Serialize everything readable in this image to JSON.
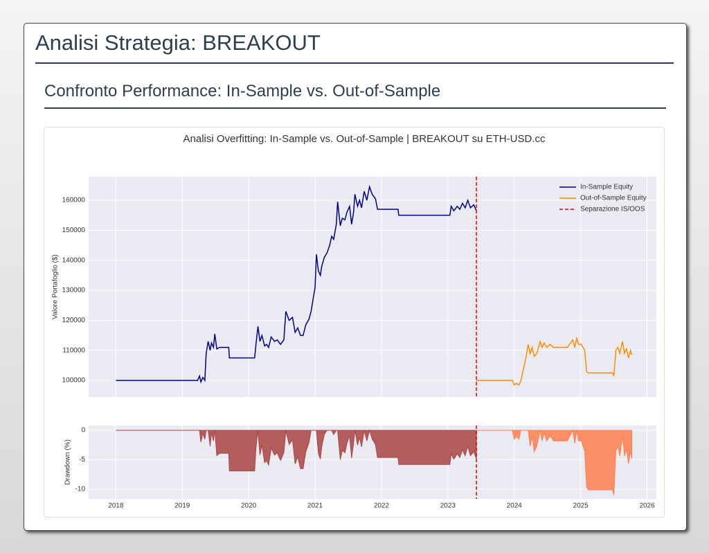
{
  "header": {
    "title": "Analisi Strategia: BREAKOUT",
    "subtitle": "Confronto Performance: In-Sample vs. Out-of-Sample"
  },
  "chart_data": [
    {
      "type": "line",
      "title": "Analisi Overfitting: In-Sample vs. Out-of-Sample | BREAKOUT su ETH-USD.cc",
      "ylabel": "Valore Portafoglio ($)",
      "xlim": [
        2017.59,
        2026.14
      ],
      "ylim": [
        94460,
        167850
      ],
      "yticks": [
        100000,
        110000,
        120000,
        130000,
        140000,
        150000,
        160000
      ],
      "grid": true,
      "legend": "upper right",
      "series": [
        {
          "name": "In-Sample Equity",
          "color": "#00008b",
          "x": [
            2018.0,
            2019.23,
            2019.26,
            2019.28,
            2019.31,
            2019.34,
            2019.36,
            2019.39,
            2019.42,
            2019.44,
            2019.47,
            2019.49,
            2019.52,
            2019.56,
            2019.7,
            2019.71,
            2020.09,
            2020.11,
            2020.14,
            2020.17,
            2020.2,
            2020.24,
            2020.27,
            2020.3,
            2020.34,
            2020.39,
            2020.43,
            2020.48,
            2020.53,
            2020.56,
            2020.61,
            2020.66,
            2020.7,
            2020.74,
            2020.78,
            2020.82,
            2020.86,
            2020.91,
            2020.94,
            2020.97,
            2021.0,
            2021.02,
            2021.05,
            2021.08,
            2021.1,
            2021.14,
            2021.18,
            2021.22,
            2021.25,
            2021.28,
            2021.32,
            2021.34,
            2021.38,
            2021.41,
            2021.45,
            2021.48,
            2021.52,
            2021.55,
            2021.58,
            2021.6,
            2021.64,
            2021.67,
            2021.7,
            2021.74,
            2021.78,
            2021.82,
            2021.86,
            2021.91,
            2021.94,
            2022.25,
            2022.26,
            2023.03,
            2023.05,
            2023.09,
            2023.14,
            2023.18,
            2023.22,
            2023.26,
            2023.3,
            2023.34,
            2023.39,
            2023.43
          ],
          "values": [
            100000,
            100000,
            101500,
            99500,
            101000,
            100000,
            109000,
            113000,
            110000,
            112500,
            111000,
            115500,
            110500,
            111000,
            111000,
            107500,
            107500,
            112000,
            118000,
            113000,
            115000,
            111500,
            112000,
            111000,
            114500,
            113000,
            113500,
            112000,
            113500,
            123000,
            120000,
            121000,
            116000,
            117500,
            115000,
            115000,
            118500,
            120500,
            123000,
            127000,
            131000,
            142000,
            136500,
            135000,
            138000,
            141000,
            142500,
            145000,
            148000,
            147000,
            152000,
            159500,
            151500,
            154000,
            153500,
            156000,
            158000,
            152000,
            156000,
            162000,
            158000,
            160000,
            157500,
            163000,
            160000,
            164500,
            162000,
            160500,
            157000,
            157000,
            155000,
            155000,
            158000,
            156500,
            158000,
            157000,
            159000,
            157500,
            160000,
            157500,
            158500,
            156500
          ]
        },
        {
          "name": "Out-of-Sample Equity",
          "color": "#ff8c00",
          "x": [
            2023.43,
            2023.97,
            2024.0,
            2024.03,
            2024.07,
            2024.1,
            2024.14,
            2024.18,
            2024.21,
            2024.24,
            2024.27,
            2024.3,
            2024.34,
            2024.39,
            2024.42,
            2024.45,
            2024.49,
            2024.54,
            2024.59,
            2024.8,
            2024.88,
            2024.91,
            2024.94,
            2024.97,
            2025.01,
            2025.06,
            2025.09,
            2025.11,
            2025.48,
            2025.5,
            2025.53,
            2025.56,
            2025.59,
            2025.63,
            2025.66,
            2025.69,
            2025.72,
            2025.75,
            2025.77
          ],
          "values": [
            100000,
            100000,
            98500,
            99000,
            98500,
            100000,
            104000,
            108000,
            112000,
            109000,
            111000,
            108000,
            109000,
            113000,
            111000,
            112500,
            111000,
            112000,
            111000,
            111000,
            113500,
            111000,
            114000,
            112000,
            112000,
            110000,
            103000,
            102500,
            102500,
            101500,
            110000,
            111000,
            109000,
            113000,
            109000,
            110500,
            107500,
            110000,
            108500
          ]
        }
      ],
      "vline": {
        "x": 2023.43,
        "color": "#e00000",
        "name": "Separazione IS/OOS"
      }
    },
    {
      "type": "area",
      "ylabel": "Drawdown (%)",
      "xlim": [
        2017.59,
        2026.14
      ],
      "ylim": [
        -11.65,
        0.82
      ],
      "xticks": [
        2018,
        2019,
        2020,
        2021,
        2022,
        2023,
        2024,
        2025,
        2026
      ],
      "yticks": [
        0,
        -5,
        -10
      ],
      "grid": true,
      "series": [
        {
          "color": "#a94442",
          "x": [
            2018.0,
            2019.23,
            2019.26,
            2019.28,
            2019.31,
            2019.34,
            2019.36,
            2019.39,
            2019.42,
            2019.44,
            2019.47,
            2019.49,
            2019.52,
            2019.56,
            2019.7,
            2019.71,
            2020.09,
            2020.11,
            2020.14,
            2020.17,
            2020.2,
            2020.24,
            2020.27,
            2020.3,
            2020.34,
            2020.39,
            2020.43,
            2020.48,
            2020.53,
            2020.56,
            2020.61,
            2020.66,
            2020.7,
            2020.74,
            2020.78,
            2020.82,
            2020.86,
            2020.91,
            2020.94,
            2020.97,
            2021.0,
            2021.02,
            2021.05,
            2021.08,
            2021.1,
            2021.14,
            2021.18,
            2021.22,
            2021.25,
            2021.28,
            2021.32,
            2021.34,
            2021.38,
            2021.41,
            2021.45,
            2021.48,
            2021.52,
            2021.55,
            2021.58,
            2021.6,
            2021.64,
            2021.67,
            2021.7,
            2021.74,
            2021.78,
            2021.82,
            2021.86,
            2021.91,
            2021.94,
            2022.25,
            2022.26,
            2023.03,
            2023.05,
            2023.09,
            2023.14,
            2023.18,
            2023.22,
            2023.26,
            2023.3,
            2023.34,
            2023.39,
            2023.43
          ],
          "values": [
            0,
            0,
            0,
            -2.0,
            -0.5,
            -1.5,
            0,
            0,
            -2.7,
            -0.4,
            -1.8,
            0,
            -4.3,
            -3.9,
            -3.9,
            -6.9,
            -6.9,
            -3.0,
            0,
            -4.2,
            -2.5,
            -5.5,
            -5.1,
            -5.9,
            -3.0,
            -4.2,
            -3.8,
            -5.1,
            -3.8,
            0,
            -2.4,
            -1.6,
            -5.7,
            -4.5,
            -6.5,
            -6.5,
            -3.7,
            -2.0,
            0,
            0,
            0,
            0,
            -3.9,
            -4.9,
            -2.8,
            -0.7,
            0,
            0,
            0,
            -0.7,
            0,
            0,
            -5.0,
            -3.4,
            -3.8,
            -2.2,
            -0.9,
            -4.7,
            -2.2,
            0,
            -2.5,
            -1.2,
            -2.8,
            0,
            -1.8,
            0,
            -1.5,
            -2.4,
            -4.6,
            -4.6,
            -5.8,
            -5.8,
            -4.0,
            -4.9,
            -4.0,
            -4.6,
            -3.3,
            -4.3,
            -2.7,
            -4.3,
            -3.6,
            -4.9
          ]
        },
        {
          "color": "#ff7f50",
          "x": [
            2023.43,
            2023.97,
            2024.0,
            2024.03,
            2024.07,
            2024.1,
            2024.14,
            2024.18,
            2024.21,
            2024.24,
            2024.27,
            2024.3,
            2024.34,
            2024.39,
            2024.42,
            2024.45,
            2024.49,
            2024.54,
            2024.59,
            2024.8,
            2024.88,
            2024.91,
            2024.94,
            2024.97,
            2025.01,
            2025.06,
            2025.09,
            2025.11,
            2025.48,
            2025.5,
            2025.53,
            2025.56,
            2025.59,
            2025.63,
            2025.66,
            2025.69,
            2025.72,
            2025.75,
            2025.77
          ],
          "values": [
            0,
            0,
            -1.5,
            -1.0,
            -1.5,
            0,
            0,
            0,
            0,
            -2.7,
            -0.9,
            -3.6,
            -2.7,
            0,
            -1.8,
            -0.4,
            -1.8,
            -0.9,
            -1.8,
            -1.8,
            0,
            -2.2,
            0,
            -1.8,
            -1.8,
            -3.5,
            -9.6,
            -10.1,
            -10.1,
            -11.0,
            -3.5,
            -2.6,
            -4.4,
            -0.9,
            -4.4,
            -3.1,
            -5.7,
            -3.5,
            -4.8
          ]
        }
      ],
      "vline": {
        "x": 2023.43,
        "color": "#e00000"
      }
    }
  ]
}
